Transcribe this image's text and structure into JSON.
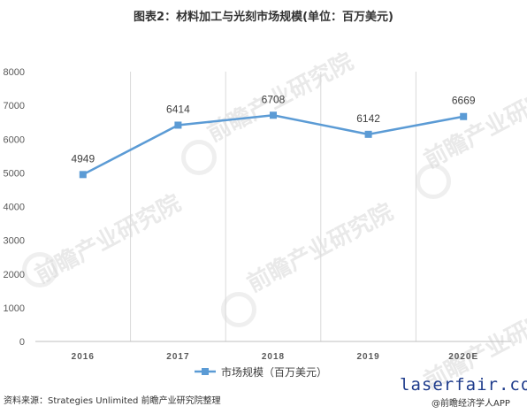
{
  "title": "图表2：材料加工与光刻市场规模(单位：百万美元)",
  "chart_data": {
    "type": "line",
    "categories": [
      "2016",
      "2017",
      "2018",
      "2019",
      "2020E"
    ],
    "series": [
      {
        "name": "市场规模（百万美元）",
        "values": [
          4949,
          6414,
          6708,
          6142,
          6669
        ],
        "color": "#5b9bd5"
      }
    ],
    "ylim": [
      0,
      8000
    ],
    "yticks": [
      "0",
      "1000",
      "2000",
      "3000",
      "4000",
      "5000",
      "6000",
      "7000",
      "8000"
    ],
    "grid": "vertical",
    "legend_position": "bottom",
    "data_labels": true
  },
  "watermark_text": "前瞻产业研究院",
  "source": "资料来源：Strategies Unlimited 前瞻产业研究院整理",
  "site_watermark": "laserfair.com",
  "app_credit": "@前瞻经济学人APP"
}
